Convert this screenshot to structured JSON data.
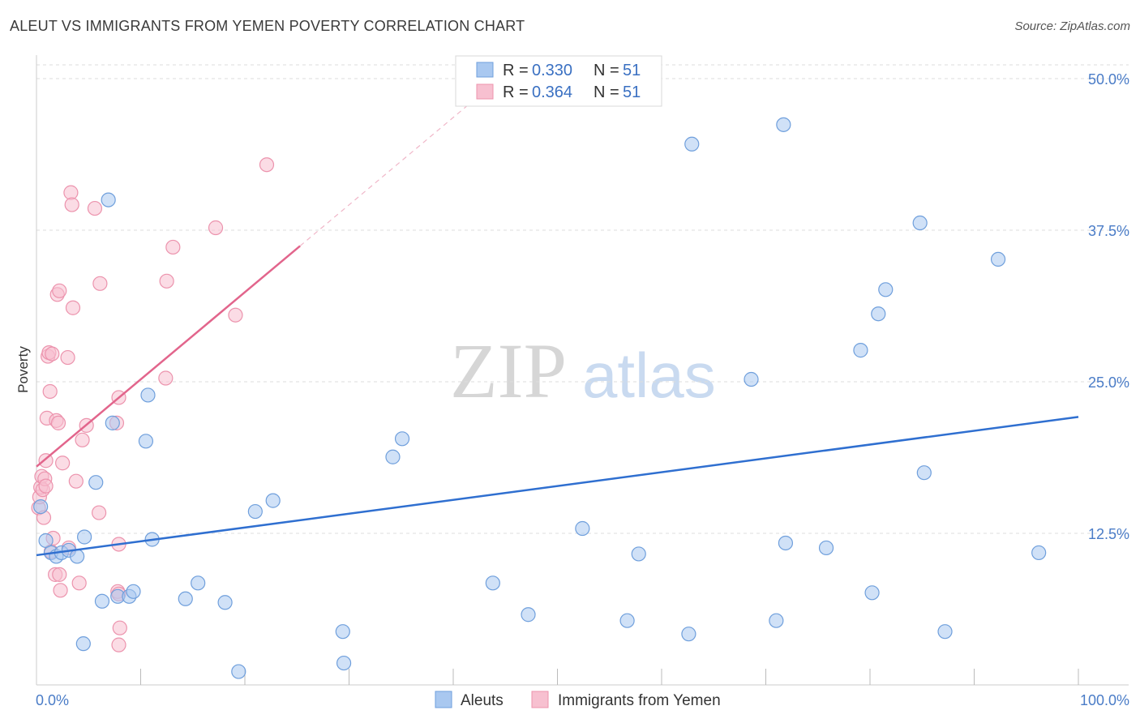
{
  "title": "ALEUT VS IMMIGRANTS FROM YEMEN POVERTY CORRELATION CHART",
  "source": "Source: ZipAtlas.com",
  "watermark": {
    "zip": "ZIP",
    "atlas": "atlas"
  },
  "colors": {
    "aleut_fill": "#a9c8f0",
    "aleut_stroke": "#6f9fdc",
    "aleut_line": "#2f6fd0",
    "yemen_fill": "#f7c0d0",
    "yemen_stroke": "#ec93ad",
    "yemen_line": "#e2658c",
    "tick": "#4a7cc7",
    "grid": "#dddddd"
  },
  "legend": {
    "r_label": "R =",
    "n_label": "N =",
    "rows": [
      {
        "r": "0.330",
        "n": "51"
      },
      {
        "r": "0.364",
        "n": "51"
      }
    ]
  },
  "bottom_legend": [
    "Aleuts",
    "Immigrants from Yemen"
  ],
  "chart_data": {
    "type": "scatter",
    "title": "ALEUT VS IMMIGRANTS FROM YEMEN POVERTY CORRELATION CHART",
    "xlabel": "",
    "ylabel": "Poverty",
    "xlim": [
      0,
      100
    ],
    "ylim": [
      0,
      50
    ],
    "x_tick_labels": [
      "0.0%",
      "100.0%"
    ],
    "y_ticks": [
      12.5,
      25.0,
      37.5,
      50.0
    ],
    "y_tick_labels": [
      "12.5%",
      "25.0%",
      "37.5%",
      "50.0%"
    ],
    "legend_position": "top-center",
    "series": [
      {
        "name": "Aleuts",
        "r": 0.33,
        "n": 51,
        "trend": {
          "x0": 0,
          "y0": 10.7,
          "x1": 100,
          "y1": 22.1
        },
        "points": [
          [
            0.4,
            14.7
          ],
          [
            0.9,
            11.9
          ],
          [
            1.4,
            10.9
          ],
          [
            1.9,
            10.6
          ],
          [
            2.4,
            10.9
          ],
          [
            3.1,
            11.1
          ],
          [
            3.9,
            10.6
          ],
          [
            4.5,
            3.4
          ],
          [
            4.6,
            12.2
          ],
          [
            5.7,
            16.7
          ],
          [
            6.3,
            6.9
          ],
          [
            6.9,
            40.0
          ],
          [
            7.3,
            21.6
          ],
          [
            7.8,
            7.3
          ],
          [
            8.9,
            7.3
          ],
          [
            9.3,
            7.7
          ],
          [
            10.5,
            20.1
          ],
          [
            10.7,
            23.9
          ],
          [
            11.1,
            12.0
          ],
          [
            14.3,
            7.1
          ],
          [
            15.5,
            8.4
          ],
          [
            18.1,
            6.8
          ],
          [
            19.4,
            1.1
          ],
          [
            21.0,
            14.3
          ],
          [
            22.7,
            15.2
          ],
          [
            29.4,
            4.4
          ],
          [
            29.5,
            1.8
          ],
          [
            34.2,
            18.8
          ],
          [
            35.1,
            20.3
          ],
          [
            43.8,
            8.4
          ],
          [
            47.2,
            5.8
          ],
          [
            52.4,
            12.9
          ],
          [
            56.7,
            5.3
          ],
          [
            57.8,
            10.8
          ],
          [
            62.6,
            4.2
          ],
          [
            62.9,
            44.6
          ],
          [
            68.6,
            25.2
          ],
          [
            71.0,
            5.3
          ],
          [
            71.7,
            46.2
          ],
          [
            71.9,
            11.7
          ],
          [
            75.8,
            11.3
          ],
          [
            79.1,
            27.6
          ],
          [
            80.2,
            7.6
          ],
          [
            80.8,
            30.6
          ],
          [
            81.5,
            32.6
          ],
          [
            84.8,
            38.1
          ],
          [
            85.2,
            17.5
          ],
          [
            87.2,
            4.4
          ],
          [
            92.3,
            35.1
          ],
          [
            96.2,
            10.9
          ]
        ]
      },
      {
        "name": "Immigrants from Yemen",
        "r": 0.364,
        "n": 51,
        "trend": {
          "x0": 0,
          "y0": 18.0,
          "x1": 25.3,
          "y1": 36.2
        },
        "trend_ext": {
          "x0": 25.3,
          "y0": 36.2,
          "x1": 42.5,
          "y1": 48.6
        },
        "points": [
          [
            0.2,
            14.6
          ],
          [
            0.3,
            15.5
          ],
          [
            0.4,
            16.3
          ],
          [
            0.5,
            17.2
          ],
          [
            0.6,
            16.1
          ],
          [
            0.7,
            13.8
          ],
          [
            0.8,
            17.0
          ],
          [
            0.9,
            16.4
          ],
          [
            0.9,
            18.5
          ],
          [
            1.0,
            22.0
          ],
          [
            1.1,
            27.1
          ],
          [
            1.2,
            27.4
          ],
          [
            1.3,
            24.2
          ],
          [
            1.4,
            11.0
          ],
          [
            1.5,
            27.3
          ],
          [
            1.6,
            12.1
          ],
          [
            1.8,
            9.1
          ],
          [
            1.9,
            21.8
          ],
          [
            2.0,
            32.2
          ],
          [
            2.1,
            21.6
          ],
          [
            2.2,
            32.5
          ],
          [
            2.2,
            9.1
          ],
          [
            2.3,
            7.8
          ],
          [
            2.5,
            18.3
          ],
          [
            3.0,
            27.0
          ],
          [
            3.1,
            11.3
          ],
          [
            3.3,
            40.6
          ],
          [
            3.4,
            39.6
          ],
          [
            3.5,
            31.1
          ],
          [
            3.8,
            16.8
          ],
          [
            4.1,
            8.4
          ],
          [
            4.4,
            20.2
          ],
          [
            4.8,
            21.4
          ],
          [
            5.6,
            39.3
          ],
          [
            6.0,
            14.2
          ],
          [
            6.1,
            33.1
          ],
          [
            7.7,
            21.6
          ],
          [
            7.8,
            7.7
          ],
          [
            7.9,
            7.5
          ],
          [
            7.9,
            3.3
          ],
          [
            7.9,
            11.6
          ],
          [
            7.9,
            23.7
          ],
          [
            8.0,
            4.7
          ],
          [
            12.4,
            25.3
          ],
          [
            12.5,
            33.3
          ],
          [
            13.1,
            36.1
          ],
          [
            17.2,
            37.7
          ],
          [
            19.1,
            30.5
          ],
          [
            22.1,
            42.9
          ]
        ]
      }
    ]
  }
}
